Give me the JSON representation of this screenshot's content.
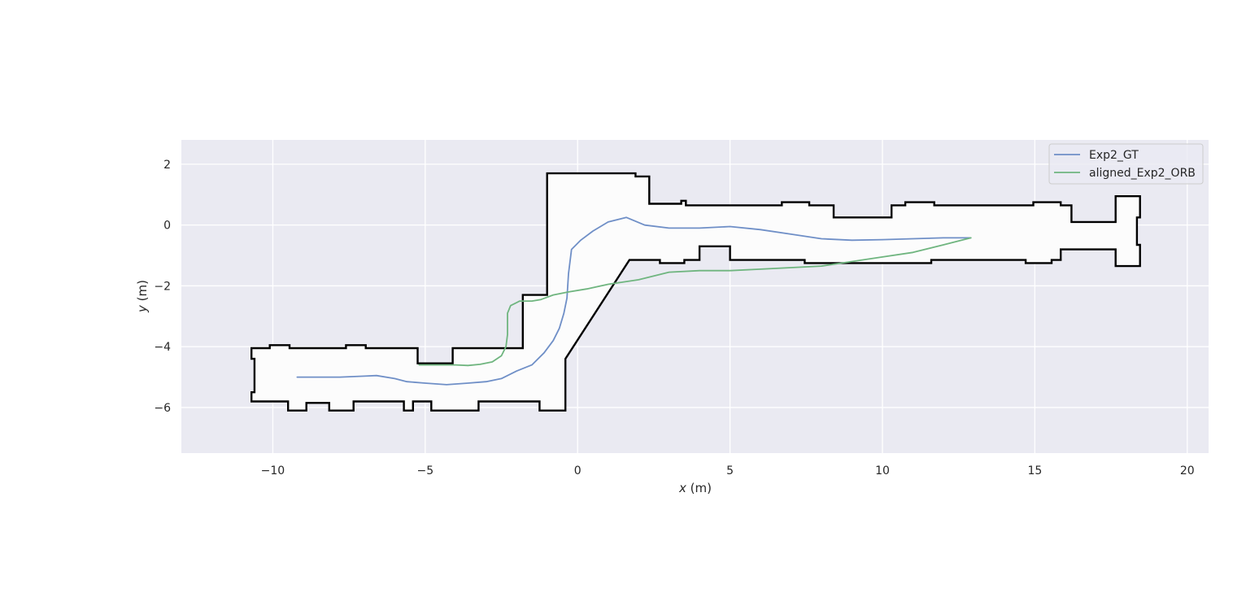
{
  "colors": {
    "background": "#ffffff",
    "axes_face": "#eaeaf2",
    "grid": "#ffffff",
    "map_free_space": "#fcfcfc",
    "map_walls": "#000000",
    "gt_line": "#6f8fc7",
    "orb_line": "#6fb57f",
    "text": "#262626"
  },
  "chart_data": {
    "type": "line",
    "title": "",
    "xlabel_var": "x",
    "xlabel_unit": " (m)",
    "ylabel_var": "y",
    "ylabel_unit": " (m)",
    "xlim": [
      -13.0,
      20.7
    ],
    "ylim": [
      -7.5,
      2.8
    ],
    "xticks": [
      -10,
      -5,
      0,
      5,
      10,
      15,
      20
    ],
    "xtick_labels": [
      "−10",
      "−5",
      "0",
      "5",
      "10",
      "15",
      "20"
    ],
    "yticks": [
      2,
      0,
      -2,
      -4,
      -6
    ],
    "ytick_labels": [
      "2",
      "0",
      "−2",
      "−4",
      "−6"
    ],
    "grid": true,
    "legend_position": "top-right",
    "map_outline": [
      [
        -10.7,
        -4.05
      ],
      [
        -10.1,
        -4.05
      ],
      [
        -10.1,
        -3.95
      ],
      [
        -9.45,
        -3.95
      ],
      [
        -9.45,
        -4.05
      ],
      [
        -7.6,
        -4.05
      ],
      [
        -7.6,
        -3.95
      ],
      [
        -6.95,
        -3.95
      ],
      [
        -6.95,
        -4.05
      ],
      [
        -5.25,
        -4.05
      ],
      [
        -5.25,
        -4.55
      ],
      [
        -4.1,
        -4.55
      ],
      [
        -4.1,
        -4.05
      ],
      [
        -1.8,
        -4.05
      ],
      [
        -1.8,
        -2.3
      ],
      [
        -1.0,
        -2.3
      ],
      [
        -1.0,
        1.7
      ],
      [
        1.9,
        1.7
      ],
      [
        1.9,
        1.6
      ],
      [
        2.35,
        1.6
      ],
      [
        2.35,
        0.7
      ],
      [
        3.4,
        0.7
      ],
      [
        3.4,
        0.8
      ],
      [
        3.55,
        0.8
      ],
      [
        3.55,
        0.65
      ],
      [
        6.7,
        0.65
      ],
      [
        6.7,
        0.75
      ],
      [
        7.6,
        0.75
      ],
      [
        7.6,
        0.65
      ],
      [
        8.4,
        0.65
      ],
      [
        8.4,
        0.25
      ],
      [
        10.3,
        0.25
      ],
      [
        10.3,
        0.65
      ],
      [
        10.75,
        0.65
      ],
      [
        10.75,
        0.75
      ],
      [
        11.7,
        0.75
      ],
      [
        11.7,
        0.65
      ],
      [
        14.95,
        0.65
      ],
      [
        14.95,
        0.75
      ],
      [
        15.85,
        0.75
      ],
      [
        15.85,
        0.65
      ],
      [
        16.2,
        0.65
      ],
      [
        16.2,
        0.1
      ],
      [
        17.65,
        0.1
      ],
      [
        17.65,
        0.95
      ],
      [
        18.45,
        0.95
      ],
      [
        18.45,
        0.25
      ],
      [
        18.35,
        0.25
      ],
      [
        18.35,
        -0.65
      ],
      [
        18.45,
        -0.65
      ],
      [
        18.45,
        -1.35
      ],
      [
        17.65,
        -1.35
      ],
      [
        17.65,
        -0.8
      ],
      [
        15.85,
        -0.8
      ],
      [
        15.85,
        -1.15
      ],
      [
        15.55,
        -1.15
      ],
      [
        15.55,
        -1.25
      ],
      [
        14.7,
        -1.25
      ],
      [
        14.7,
        -1.15
      ],
      [
        11.6,
        -1.15
      ],
      [
        11.6,
        -1.25
      ],
      [
        7.45,
        -1.25
      ],
      [
        7.45,
        -1.15
      ],
      [
        5.0,
        -1.15
      ],
      [
        5.0,
        -0.7
      ],
      [
        4.0,
        -0.7
      ],
      [
        4.0,
        -1.15
      ],
      [
        3.5,
        -1.15
      ],
      [
        3.5,
        -1.25
      ],
      [
        2.7,
        -1.25
      ],
      [
        2.7,
        -1.15
      ],
      [
        1.7,
        -1.15
      ],
      [
        -0.4,
        -4.4
      ],
      [
        -0.4,
        -6.1
      ],
      [
        -1.25,
        -6.1
      ],
      [
        -1.25,
        -5.8
      ],
      [
        -3.25,
        -5.8
      ],
      [
        -3.25,
        -6.1
      ],
      [
        -4.8,
        -6.1
      ],
      [
        -4.8,
        -5.8
      ],
      [
        -5.4,
        -5.8
      ],
      [
        -5.4,
        -6.1
      ],
      [
        -5.7,
        -6.1
      ],
      [
        -5.7,
        -5.8
      ],
      [
        -7.35,
        -5.8
      ],
      [
        -7.35,
        -6.1
      ],
      [
        -8.15,
        -6.1
      ],
      [
        -8.15,
        -5.85
      ],
      [
        -8.9,
        -5.85
      ],
      [
        -8.9,
        -6.1
      ],
      [
        -9.5,
        -6.1
      ],
      [
        -9.5,
        -5.8
      ],
      [
        -10.7,
        -5.8
      ],
      [
        -10.7,
        -5.5
      ],
      [
        -10.6,
        -5.5
      ],
      [
        -10.6,
        -4.4
      ],
      [
        -10.7,
        -4.4
      ],
      [
        -10.7,
        -4.05
      ]
    ],
    "series": [
      {
        "name": "Exp2_GT",
        "x": [
          -9.2,
          -8.5,
          -7.8,
          -7.0,
          -6.6,
          -6.0,
          -5.6,
          -5.0,
          -4.3,
          -3.6,
          -3.0,
          -2.5,
          -2.0,
          -1.5,
          -1.1,
          -0.8,
          -0.6,
          -0.45,
          -0.35,
          -0.3,
          -0.2,
          0.1,
          0.5,
          1.0,
          1.6,
          2.2,
          3.0,
          4.0,
          5.0,
          6.0,
          7.0,
          8.0,
          9.0,
          10.0,
          11.0,
          12.0,
          12.9
        ],
        "y": [
          -5.0,
          -5.0,
          -5.0,
          -4.97,
          -4.95,
          -5.05,
          -5.15,
          -5.2,
          -5.25,
          -5.2,
          -5.15,
          -5.05,
          -4.8,
          -4.6,
          -4.2,
          -3.8,
          -3.4,
          -2.9,
          -2.4,
          -1.6,
          -0.8,
          -0.5,
          -0.2,
          0.1,
          0.25,
          0.0,
          -0.1,
          -0.1,
          -0.05,
          -0.15,
          -0.3,
          -0.45,
          -0.5,
          -0.48,
          -0.45,
          -0.42,
          -0.42
        ]
      },
      {
        "name": "aligned_Exp2_ORB",
        "x": [
          -5.2,
          -4.6,
          -4.0,
          -3.6,
          -3.2,
          -2.8,
          -2.5,
          -2.35,
          -2.3,
          -2.3,
          -2.2,
          -1.9,
          -1.5,
          -1.2,
          -0.8,
          -0.3,
          0.3,
          1.0,
          2.0,
          3.0,
          4.0,
          5.0,
          6.0,
          7.0,
          8.0,
          9.0,
          10.0,
          11.0,
          12.0,
          12.9
        ],
        "y": [
          -4.6,
          -4.6,
          -4.6,
          -4.62,
          -4.58,
          -4.5,
          -4.3,
          -4.0,
          -3.6,
          -2.9,
          -2.65,
          -2.5,
          -2.5,
          -2.45,
          -2.3,
          -2.2,
          -2.1,
          -1.95,
          -1.8,
          -1.55,
          -1.5,
          -1.5,
          -1.45,
          -1.4,
          -1.35,
          -1.2,
          -1.05,
          -0.9,
          -0.65,
          -0.42
        ]
      }
    ]
  }
}
